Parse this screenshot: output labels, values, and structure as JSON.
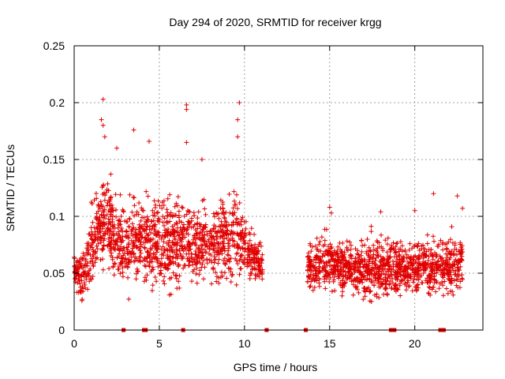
{
  "chart_data": {
    "type": "scatter",
    "title": "Day 294 of 2020, SRMTID for receiver krgg",
    "xlabel": "GPS time / hours",
    "ylabel": "SRMTID / TECUs",
    "xlim": [
      0,
      24
    ],
    "ylim": [
      0,
      0.25
    ],
    "xticks": [
      0,
      5,
      10,
      15,
      20
    ],
    "xtick_labels": [
      "0",
      "5",
      "10",
      "15",
      "20"
    ],
    "yticks": [
      0,
      0.05,
      0.1,
      0.15,
      0.2,
      0.25
    ],
    "ytick_labels": [
      "0",
      "0.05",
      "0.1",
      "0.15",
      "0.2",
      "0.25"
    ],
    "grid": true,
    "marker": "+",
    "series_color": "#e00000",
    "envelope": [
      {
        "x": 0.0,
        "low": 0.04,
        "high": 0.066
      },
      {
        "x": 0.5,
        "low": 0.02,
        "high": 0.07
      },
      {
        "x": 1.0,
        "low": 0.03,
        "high": 0.11
      },
      {
        "x": 1.5,
        "low": 0.04,
        "high": 0.145
      },
      {
        "x": 2.0,
        "low": 0.045,
        "high": 0.135
      },
      {
        "x": 2.5,
        "low": 0.03,
        "high": 0.13
      },
      {
        "x": 3.0,
        "low": 0.03,
        "high": 0.115
      },
      {
        "x": 3.5,
        "low": 0.03,
        "high": 0.12
      },
      {
        "x": 4.0,
        "low": 0.035,
        "high": 0.125
      },
      {
        "x": 4.5,
        "low": 0.03,
        "high": 0.13
      },
      {
        "x": 5.0,
        "low": 0.025,
        "high": 0.12
      },
      {
        "x": 5.5,
        "low": 0.025,
        "high": 0.12
      },
      {
        "x": 6.0,
        "low": 0.03,
        "high": 0.125
      },
      {
        "x": 6.5,
        "low": 0.04,
        "high": 0.12
      },
      {
        "x": 7.0,
        "low": 0.04,
        "high": 0.11
      },
      {
        "x": 7.5,
        "low": 0.04,
        "high": 0.115
      },
      {
        "x": 8.0,
        "low": 0.04,
        "high": 0.11
      },
      {
        "x": 8.5,
        "low": 0.035,
        "high": 0.12
      },
      {
        "x": 9.0,
        "low": 0.035,
        "high": 0.125
      },
      {
        "x": 9.5,
        "low": 0.04,
        "high": 0.125
      },
      {
        "x": 10.0,
        "low": 0.045,
        "high": 0.105
      },
      {
        "x": 10.5,
        "low": 0.045,
        "high": 0.09
      },
      {
        "x": 11.0,
        "low": 0.04,
        "high": 0.075
      },
      {
        "x": 13.7,
        "low": 0.035,
        "high": 0.075
      },
      {
        "x": 14.5,
        "low": 0.03,
        "high": 0.09
      },
      {
        "x": 15.5,
        "low": 0.03,
        "high": 0.085
      },
      {
        "x": 16.5,
        "low": 0.025,
        "high": 0.08
      },
      {
        "x": 17.5,
        "low": 0.02,
        "high": 0.09
      },
      {
        "x": 18.5,
        "low": 0.02,
        "high": 0.085
      },
      {
        "x": 19.5,
        "low": 0.025,
        "high": 0.08
      },
      {
        "x": 20.5,
        "low": 0.03,
        "high": 0.085
      },
      {
        "x": 21.5,
        "low": 0.025,
        "high": 0.085
      },
      {
        "x": 22.5,
        "low": 0.02,
        "high": 0.09
      },
      {
        "x": 22.8,
        "low": 0.035,
        "high": 0.085
      }
    ],
    "sample_count": 2600,
    "outliers": [
      {
        "x": 1.7,
        "y": 0.203
      },
      {
        "x": 1.6,
        "y": 0.185
      },
      {
        "x": 1.7,
        "y": 0.18
      },
      {
        "x": 1.8,
        "y": 0.17
      },
      {
        "x": 3.5,
        "y": 0.176
      },
      {
        "x": 4.4,
        "y": 0.166
      },
      {
        "x": 6.6,
        "y": 0.198
      },
      {
        "x": 6.6,
        "y": 0.194
      },
      {
        "x": 6.6,
        "y": 0.165
      },
      {
        "x": 9.7,
        "y": 0.2
      },
      {
        "x": 9.6,
        "y": 0.185
      },
      {
        "x": 9.6,
        "y": 0.17
      },
      {
        "x": 2.5,
        "y": 0.16
      },
      {
        "x": 7.5,
        "y": 0.15
      },
      {
        "x": 15.0,
        "y": 0.108
      },
      {
        "x": 15.1,
        "y": 0.103
      },
      {
        "x": 21.1,
        "y": 0.12
      },
      {
        "x": 22.5,
        "y": 0.118
      },
      {
        "x": 22.8,
        "y": 0.107
      },
      {
        "x": 20.0,
        "y": 0.105
      },
      {
        "x": 18.0,
        "y": 0.104
      }
    ],
    "zero_markers": [
      2.9,
      4.1,
      4.2,
      6.4,
      11.3,
      13.6,
      18.6,
      18.7,
      18.8,
      21.5,
      21.6,
      21.7
    ]
  }
}
